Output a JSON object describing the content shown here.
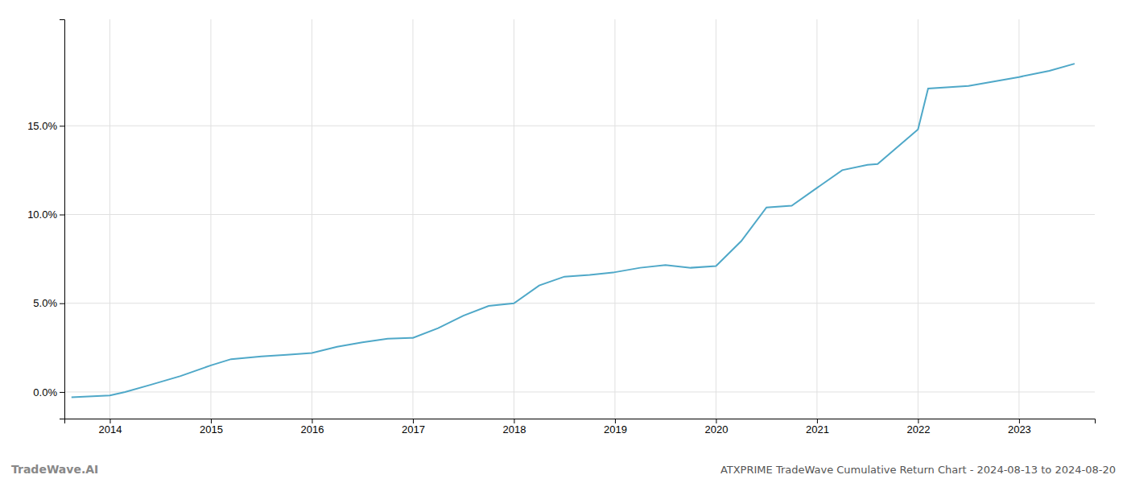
{
  "chart_data": {
    "type": "line",
    "title": "ATXPRIME TradeWave Cumulative Return Chart - 2024-08-13 to 2024-08-20",
    "annotations": [
      "TradeWave.AI"
    ],
    "color": "#4fa8c8",
    "grid": true,
    "x": [
      2013.62,
      2014.0,
      2014.15,
      2014.4,
      2014.7,
      2015.0,
      2015.2,
      2015.5,
      2015.75,
      2016.0,
      2016.25,
      2016.5,
      2016.75,
      2017.0,
      2017.25,
      2017.5,
      2017.75,
      2018.0,
      2018.25,
      2018.5,
      2018.75,
      2019.0,
      2019.25,
      2019.5,
      2019.75,
      2020.0,
      2020.25,
      2020.5,
      2020.75,
      2021.0,
      2021.25,
      2021.5,
      2021.6,
      2022.0,
      2022.1,
      2022.5,
      2022.75,
      2023.0,
      2023.3,
      2023.55
    ],
    "values": [
      -0.3,
      -0.2,
      0.0,
      0.4,
      0.9,
      1.5,
      1.85,
      2.0,
      2.1,
      2.2,
      2.55,
      2.8,
      3.0,
      3.05,
      3.6,
      4.3,
      4.85,
      5.0,
      6.0,
      6.5,
      6.6,
      6.75,
      7.0,
      7.15,
      7.0,
      7.1,
      8.5,
      10.4,
      10.5,
      11.5,
      12.5,
      12.8,
      12.85,
      14.8,
      17.1,
      17.25,
      17.5,
      17.75,
      18.1,
      18.5
    ],
    "xlim": [
      2013.55,
      2023.75
    ],
    "xticks": [
      2014,
      2015,
      2016,
      2017,
      2018,
      2019,
      2020,
      2021,
      2022,
      2023
    ],
    "ylim": [
      -1.5,
      21.0
    ],
    "yticks": [
      {
        "value": 0.0,
        "label": "0.0%"
      },
      {
        "value": 5.0,
        "label": "5.0%"
      },
      {
        "value": 10.0,
        "label": "10.0%"
      },
      {
        "value": 15.0,
        "label": "15.0%"
      }
    ]
  }
}
